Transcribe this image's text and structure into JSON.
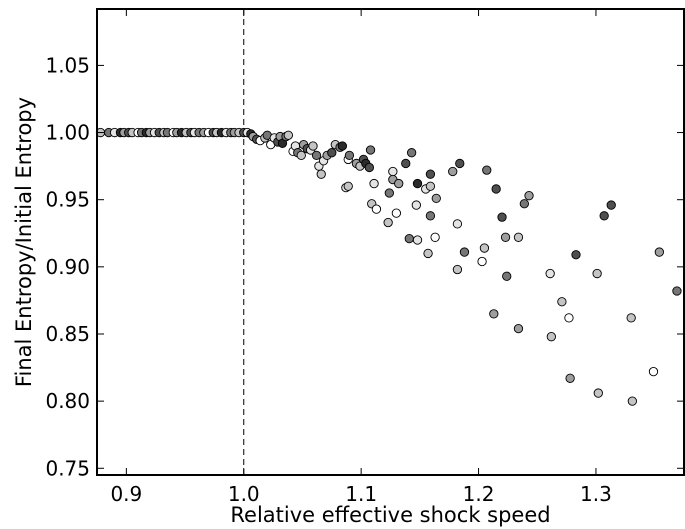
{
  "chart_data": {
    "type": "scatter",
    "title": "",
    "xlabel": "Relative effective shock speed",
    "ylabel": "Final Entropy/Initial Entropy",
    "xlim": [
      0.875,
      1.375
    ],
    "ylim": [
      0.745,
      1.092
    ],
    "xticks": [
      0.9,
      1.0,
      1.1,
      1.2,
      1.3
    ],
    "xtick_labels": [
      "0.9",
      "1.0",
      "1.1",
      "1.2",
      "1.3"
    ],
    "yticks": [
      0.75,
      0.8,
      0.85,
      0.9,
      0.95,
      1.0,
      1.05
    ],
    "ytick_labels": [
      "0.75",
      "0.80",
      "0.85",
      "0.90",
      "0.95",
      "1.00",
      "1.05"
    ],
    "grid": false,
    "reference_line": {
      "x": 1.0,
      "style": "dashed"
    },
    "point_colors": [
      "#ffffff",
      "#e4e4e4",
      "#c4c4c4",
      "#9e9e9e",
      "#767676",
      "#4f4f4f",
      "#2b2b2b"
    ],
    "points": [
      [
        0.878,
        1.0,
        2
      ],
      [
        0.885,
        1.0,
        4
      ],
      [
        0.89,
        1.0,
        1
      ],
      [
        0.895,
        1.0,
        6
      ],
      [
        0.898,
        1.0,
        3
      ],
      [
        0.902,
        1.0,
        5
      ],
      [
        0.905,
        1.0,
        2
      ],
      [
        0.91,
        1.0,
        0
      ],
      [
        0.913,
        1.0,
        4
      ],
      [
        0.917,
        1.0,
        6
      ],
      [
        0.92,
        1.0,
        3
      ],
      [
        0.924,
        1.0,
        1
      ],
      [
        0.928,
        1.0,
        5
      ],
      [
        0.932,
        1.0,
        2
      ],
      [
        0.935,
        1.0,
        4
      ],
      [
        0.94,
        1.0,
        0
      ],
      [
        0.943,
        1.0,
        3
      ],
      [
        0.947,
        1.0,
        6
      ],
      [
        0.951,
        1.0,
        2
      ],
      [
        0.955,
        1.0,
        5
      ],
      [
        0.958,
        1.0,
        1
      ],
      [
        0.962,
        1.0,
        4
      ],
      [
        0.966,
        1.0,
        3
      ],
      [
        0.97,
        1.0,
        0
      ],
      [
        0.974,
        1.0,
        5
      ],
      [
        0.977,
        1.0,
        2
      ],
      [
        0.981,
        1.0,
        6
      ],
      [
        0.985,
        1.0,
        1
      ],
      [
        0.989,
        1.0,
        4
      ],
      [
        0.992,
        1.0,
        3
      ],
      [
        0.996,
        1.0,
        2
      ],
      [
        1.0,
        1.0,
        5
      ],
      [
        1.003,
        1.0,
        1
      ],
      [
        1.006,
        0.999,
        6
      ],
      [
        1.008,
        0.997,
        3
      ],
      [
        1.011,
        0.995,
        5
      ],
      [
        1.014,
        0.994,
        0
      ],
      [
        1.018,
        0.996,
        2
      ],
      [
        1.02,
        0.998,
        4
      ],
      [
        1.023,
        0.991,
        0
      ],
      [
        1.026,
        0.996,
        1
      ],
      [
        1.029,
        0.993,
        5
      ],
      [
        1.031,
        0.997,
        3
      ],
      [
        1.033,
        0.992,
        6
      ],
      [
        1.036,
        0.997,
        4
      ],
      [
        1.038,
        0.998,
        2
      ],
      [
        1.042,
        0.986,
        0
      ],
      [
        1.044,
        0.99,
        1
      ],
      [
        1.046,
        0.985,
        4
      ],
      [
        1.049,
        0.983,
        2
      ],
      [
        1.051,
        0.991,
        3
      ],
      [
        1.054,
        0.988,
        5
      ],
      [
        1.057,
        0.987,
        1
      ],
      [
        1.059,
        0.99,
        2
      ],
      [
        1.062,
        0.983,
        4
      ],
      [
        1.064,
        0.975,
        1
      ],
      [
        1.066,
        0.969,
        2
      ],
      [
        1.068,
        0.979,
        1
      ],
      [
        1.071,
        0.983,
        3
      ],
      [
        1.075,
        0.985,
        5
      ],
      [
        1.078,
        0.991,
        2
      ],
      [
        1.082,
        0.989,
        4
      ],
      [
        1.084,
        0.99,
        6
      ],
      [
        1.087,
        0.959,
        1
      ],
      [
        1.089,
        0.96,
        2
      ],
      [
        1.089,
        0.98,
        0
      ],
      [
        1.09,
        0.983,
        4
      ],
      [
        1.096,
        0.977,
        3
      ],
      [
        1.099,
        0.975,
        2
      ],
      [
        1.102,
        0.98,
        5
      ],
      [
        1.104,
        0.977,
        6
      ],
      [
        1.107,
        0.974,
        5
      ],
      [
        1.108,
        0.987,
        4
      ],
      [
        1.109,
        0.947,
        2
      ],
      [
        1.111,
        0.962,
        1
      ],
      [
        1.113,
        0.943,
        0
      ],
      [
        1.123,
        0.933,
        2
      ],
      [
        1.124,
        0.955,
        4
      ],
      [
        1.127,
        0.971,
        1
      ],
      [
        1.127,
        0.965,
        3
      ],
      [
        1.13,
        0.94,
        0
      ],
      [
        1.132,
        0.962,
        3
      ],
      [
        1.138,
        0.977,
        5
      ],
      [
        1.141,
        0.921,
        4
      ],
      [
        1.143,
        0.985,
        4
      ],
      [
        1.147,
        0.946,
        1
      ],
      [
        1.148,
        0.962,
        6
      ],
      [
        1.148,
        0.92,
        1
      ],
      [
        1.155,
        0.958,
        1
      ],
      [
        1.157,
        0.91,
        2
      ],
      [
        1.159,
        0.969,
        5
      ],
      [
        1.159,
        0.938,
        4
      ],
      [
        1.159,
        0.96,
        2
      ],
      [
        1.163,
        0.922,
        0
      ],
      [
        1.164,
        0.951,
        3
      ],
      [
        1.178,
        0.971,
        3
      ],
      [
        1.182,
        0.932,
        1
      ],
      [
        1.182,
        0.898,
        2
      ],
      [
        1.184,
        0.977,
        5
      ],
      [
        1.188,
        0.911,
        4
      ],
      [
        1.203,
        0.904,
        0
      ],
      [
        1.205,
        0.914,
        2
      ],
      [
        1.207,
        0.972,
        4
      ],
      [
        1.213,
        0.865,
        3
      ],
      [
        1.215,
        0.958,
        5
      ],
      [
        1.22,
        0.937,
        5
      ],
      [
        1.223,
        0.922,
        3
      ],
      [
        1.224,
        0.893,
        4
      ],
      [
        1.234,
        0.922,
        2
      ],
      [
        1.234,
        0.854,
        3
      ],
      [
        1.239,
        0.947,
        4
      ],
      [
        1.243,
        0.953,
        3
      ],
      [
        1.261,
        0.895,
        1
      ],
      [
        1.262,
        0.848,
        2
      ],
      [
        1.271,
        0.874,
        2
      ],
      [
        1.277,
        0.862,
        0
      ],
      [
        1.278,
        0.817,
        3
      ],
      [
        1.283,
        0.909,
        5
      ],
      [
        1.301,
        0.895,
        2
      ],
      [
        1.302,
        0.806,
        2
      ],
      [
        1.307,
        0.938,
        5
      ],
      [
        1.313,
        0.946,
        5
      ],
      [
        1.33,
        0.862,
        2
      ],
      [
        1.331,
        0.8,
        2
      ],
      [
        1.349,
        0.822,
        0
      ],
      [
        1.354,
        0.911,
        3
      ],
      [
        1.369,
        0.882,
        4
      ]
    ]
  }
}
